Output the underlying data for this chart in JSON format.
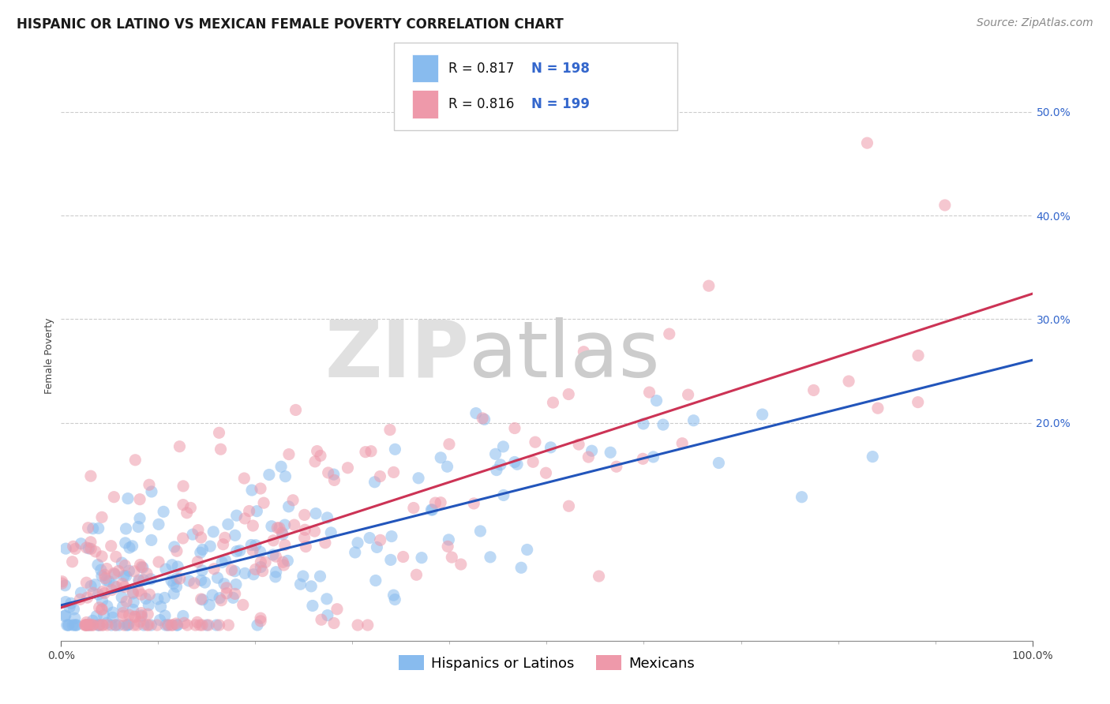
{
  "title": "HISPANIC OR LATINO VS MEXICAN FEMALE POVERTY CORRELATION CHART",
  "source": "Source: ZipAtlas.com",
  "ylabel": "Female Poverty",
  "ytick_labels": [
    "20.0%",
    "30.0%",
    "40.0%",
    "50.0%"
  ],
  "ytick_values": [
    0.2,
    0.3,
    0.4,
    0.5
  ],
  "xlim": [
    0.0,
    1.0
  ],
  "ylim": [
    -0.01,
    0.54
  ],
  "legend_label1": "Hispanics or Latinos",
  "legend_label2": "Mexicans",
  "scatter_color_blue": "#88bbee",
  "scatter_color_pink": "#ee99aa",
  "line_color_blue": "#2255bb",
  "line_color_pink": "#cc3355",
  "R_blue": 0.817,
  "N_blue": 198,
  "R_pink": 0.816,
  "N_pink": 199,
  "grid_color": "#cccccc",
  "background_color": "#ffffff",
  "title_fontsize": 12,
  "source_fontsize": 10,
  "axis_label_fontsize": 9,
  "tick_label_fontsize": 10,
  "legend_fontsize": 12,
  "tick_color_blue": "#3366cc"
}
